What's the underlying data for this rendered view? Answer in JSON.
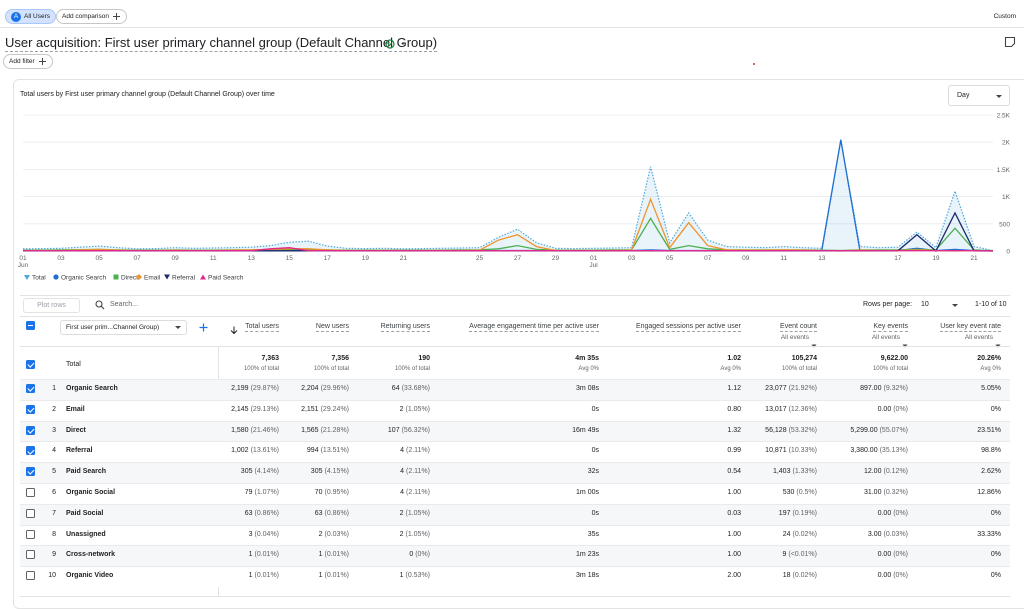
{
  "top_bar": {
    "segment_badge": "A",
    "segment": "All Users",
    "add_comparison": "Add comparison",
    "date_range": "Custom"
  },
  "header": {
    "title": "User acquisition: First user primary channel group (Default Channel Group)",
    "add_filter": "Add filter"
  },
  "chart": {
    "type": "line",
    "title": "Total users by First user primary channel group (Default Channel Group) over time",
    "granularity": "Day",
    "categories": [
      {
        "day": "01",
        "month": "Jun"
      },
      null,
      "03",
      null,
      "05",
      null,
      "07",
      null,
      "09",
      null,
      "11",
      null,
      "13",
      null,
      "15",
      null,
      "17",
      null,
      "19",
      null,
      "21",
      null,
      null,
      null,
      "25",
      null,
      "27",
      null,
      "29",
      null,
      {
        "day": "01",
        "month": "Jul"
      },
      null,
      "03",
      null,
      "05",
      null,
      "07",
      null,
      "09",
      null,
      "11",
      null,
      "13",
      null,
      null,
      null,
      "17",
      null,
      "19",
      null,
      "21",
      null
    ],
    "series": [
      {
        "name": "Total",
        "color": "#4fa8dc",
        "values": [
          40,
          45,
          50,
          70,
          90,
          60,
          40,
          45,
          60,
          50,
          55,
          60,
          70,
          100,
          160,
          180,
          90,
          50,
          45,
          50,
          40,
          45,
          50,
          55,
          60,
          250,
          400,
          150,
          50,
          45,
          50,
          55,
          60,
          1550,
          150,
          700,
          200,
          80,
          70,
          60,
          80,
          60,
          50,
          2050,
          80,
          60,
          70,
          350,
          60,
          1100,
          80,
          10
        ]
      },
      {
        "name": "Organic Search",
        "color": "#1f6fd1",
        "values": [
          10,
          10,
          10,
          10,
          10,
          10,
          10,
          10,
          10,
          10,
          10,
          10,
          10,
          10,
          10,
          10,
          10,
          10,
          10,
          10,
          10,
          10,
          10,
          10,
          10,
          10,
          10,
          10,
          10,
          10,
          10,
          10,
          10,
          20,
          10,
          10,
          10,
          10,
          10,
          10,
          10,
          10,
          10,
          2040,
          10,
          10,
          10,
          50,
          10,
          30,
          10,
          5
        ]
      },
      {
        "name": "Direct",
        "color": "#4caf50",
        "values": [
          15,
          15,
          20,
          25,
          30,
          20,
          15,
          15,
          20,
          15,
          15,
          20,
          20,
          25,
          30,
          30,
          20,
          15,
          15,
          15,
          15,
          15,
          15,
          20,
          20,
          40,
          100,
          30,
          15,
          15,
          15,
          20,
          20,
          600,
          30,
          100,
          40,
          20,
          20,
          20,
          20,
          20,
          15,
          10,
          20,
          20,
          20,
          30,
          20,
          420,
          20,
          3
        ]
      },
      {
        "name": "Email",
        "color": "#f0922b",
        "values": [
          10,
          10,
          10,
          20,
          30,
          15,
          10,
          10,
          15,
          10,
          10,
          15,
          20,
          30,
          40,
          40,
          20,
          10,
          10,
          10,
          10,
          10,
          10,
          10,
          15,
          200,
          300,
          80,
          10,
          10,
          10,
          10,
          15,
          950,
          60,
          520,
          100,
          20,
          15,
          15,
          20,
          15,
          10,
          0,
          15,
          10,
          10,
          20,
          10,
          0,
          10,
          0
        ]
      },
      {
        "name": "Referral",
        "color": "#1c2a6b",
        "values": [
          3,
          3,
          3,
          3,
          3,
          3,
          3,
          3,
          3,
          3,
          3,
          3,
          3,
          3,
          3,
          3,
          3,
          3,
          3,
          3,
          3,
          3,
          3,
          3,
          3,
          3,
          3,
          3,
          3,
          3,
          3,
          3,
          3,
          3,
          3,
          3,
          3,
          3,
          3,
          3,
          3,
          3,
          3,
          3,
          3,
          3,
          3,
          300,
          0,
          700,
          3,
          0
        ]
      },
      {
        "name": "Paid Search",
        "color": "#e0288d",
        "values": [
          5,
          5,
          5,
          5,
          5,
          5,
          5,
          5,
          5,
          5,
          5,
          5,
          5,
          40,
          60,
          5,
          5,
          5,
          5,
          5,
          5,
          5,
          5,
          5,
          5,
          5,
          5,
          5,
          5,
          5,
          5,
          5,
          5,
          5,
          5,
          5,
          5,
          5,
          5,
          5,
          5,
          5,
          5,
          5,
          5,
          5,
          5,
          5,
          5,
          5,
          5,
          0
        ]
      }
    ],
    "ylim": [
      0,
      2500
    ],
    "yticks": [
      0,
      500,
      {
        "value": 1000,
        "label": "1K"
      },
      {
        "value": 1500,
        "label": "1.5K"
      },
      {
        "value": 2000,
        "label": "2K"
      },
      {
        "value": 2500,
        "label": "2.5K"
      }
    ],
    "grid": true,
    "fill_first_series": true
  },
  "table": {
    "plot_rows": "Plot rows",
    "search_placeholder": "Search...",
    "rows_per_page_label": "Rows per page:",
    "rows_per_page": "10",
    "pagination": "1-10 of 10",
    "dimension": "First user prim...Channel Group)",
    "columns": [
      {
        "label": "Total users",
        "sorted": true
      },
      {
        "label": "New users"
      },
      {
        "label": "Returning users"
      },
      {
        "label": "Average engagement time per active user"
      },
      {
        "label": "Engaged sessions per active user"
      },
      {
        "label": "Event count",
        "filter": "All events"
      },
      {
        "label": "Key events",
        "filter": "All events"
      },
      {
        "label": "User key event rate",
        "filter": "All events"
      }
    ],
    "totals": {
      "label": "Total",
      "checked": true,
      "cells": [
        [
          "7,363",
          "100% of total"
        ],
        [
          "7,356",
          "100% of total"
        ],
        [
          "190",
          "100% of total"
        ],
        [
          "4m 35s",
          "Avg 0%"
        ],
        [
          "1.02",
          "Avg 0%"
        ],
        [
          "105,274",
          "100% of total"
        ],
        [
          "9,622.00",
          "100% of total"
        ],
        [
          "20.26%",
          "Avg 0%"
        ]
      ]
    },
    "rows": [
      {
        "index": "1",
        "name": "Organic Search",
        "checked": true,
        "cells": [
          [
            "2,199",
            "(29.87%)"
          ],
          [
            "2,204",
            "(29.96%)"
          ],
          [
            "64",
            "(33.68%)"
          ],
          [
            "3m 08s"
          ],
          [
            "1.12"
          ],
          [
            "23,077",
            "(21.92%)"
          ],
          [
            "897.00",
            "(9.32%)"
          ],
          [
            "5.05%"
          ]
        ]
      },
      {
        "index": "2",
        "name": "Email",
        "checked": true,
        "cells": [
          [
            "2,145",
            "(29.13%)"
          ],
          [
            "2,151",
            "(29.24%)"
          ],
          [
            "2",
            "(1.05%)"
          ],
          [
            "0s"
          ],
          [
            "0.80"
          ],
          [
            "13,017",
            "(12.36%)"
          ],
          [
            "0.00",
            "(0%)"
          ],
          [
            "0%"
          ]
        ]
      },
      {
        "index": "3",
        "name": "Direct",
        "checked": true,
        "cells": [
          [
            "1,580",
            "(21.46%)"
          ],
          [
            "1,565",
            "(21.28%)"
          ],
          [
            "107",
            "(56.32%)"
          ],
          [
            "16m 49s"
          ],
          [
            "1.32"
          ],
          [
            "56,128",
            "(53.32%)"
          ],
          [
            "5,299.00",
            "(55.07%)"
          ],
          [
            "23.51%"
          ]
        ]
      },
      {
        "index": "4",
        "name": "Referral",
        "checked": true,
        "cells": [
          [
            "1,002",
            "(13.61%)"
          ],
          [
            "994",
            "(13.51%)"
          ],
          [
            "4",
            "(2.11%)"
          ],
          [
            "0s"
          ],
          [
            "0.99"
          ],
          [
            "10,871",
            "(10.33%)"
          ],
          [
            "3,380.00",
            "(35.13%)"
          ],
          [
            "98.8%"
          ]
        ]
      },
      {
        "index": "5",
        "name": "Paid Search",
        "checked": true,
        "cells": [
          [
            "305",
            "(4.14%)"
          ],
          [
            "305",
            "(4.15%)"
          ],
          [
            "4",
            "(2.11%)"
          ],
          [
            "32s"
          ],
          [
            "0.54"
          ],
          [
            "1,403",
            "(1.33%)"
          ],
          [
            "12.00",
            "(0.12%)"
          ],
          [
            "2.62%"
          ]
        ]
      },
      {
        "index": "6",
        "name": "Organic Social",
        "checked": false,
        "cells": [
          [
            "79",
            "(1.07%)"
          ],
          [
            "70",
            "(0.95%)"
          ],
          [
            "4",
            "(2.11%)"
          ],
          [
            "1m 00s"
          ],
          [
            "1.00"
          ],
          [
            "530",
            "(0.5%)"
          ],
          [
            "31.00",
            "(0.32%)"
          ],
          [
            "12.86%"
          ]
        ]
      },
      {
        "index": "7",
        "name": "Paid Social",
        "checked": false,
        "cells": [
          [
            "63",
            "(0.86%)"
          ],
          [
            "63",
            "(0.86%)"
          ],
          [
            "2",
            "(1.05%)"
          ],
          [
            "0s"
          ],
          [
            "0.03"
          ],
          [
            "197",
            "(0.19%)"
          ],
          [
            "0.00",
            "(0%)"
          ],
          [
            "0%"
          ]
        ]
      },
      {
        "index": "8",
        "name": "Unassigned",
        "checked": false,
        "cells": [
          [
            "3",
            "(0.04%)"
          ],
          [
            "2",
            "(0.03%)"
          ],
          [
            "2",
            "(1.05%)"
          ],
          [
            "35s"
          ],
          [
            "1.00"
          ],
          [
            "24",
            "(0.02%)"
          ],
          [
            "3.00",
            "(0.03%)"
          ],
          [
            "33.33%"
          ]
        ]
      },
      {
        "index": "9",
        "name": "Cross-network",
        "checked": false,
        "cells": [
          [
            "1",
            "(0.01%)"
          ],
          [
            "1",
            "(0.01%)"
          ],
          [
            "0",
            "(0%)"
          ],
          [
            "1m 23s"
          ],
          [
            "1.00"
          ],
          [
            "9",
            "(<0.01%)"
          ],
          [
            "0.00",
            "(0%)"
          ],
          [
            "0%"
          ]
        ]
      },
      {
        "index": "10",
        "name": "Organic Video",
        "checked": false,
        "cells": [
          [
            "1",
            "(0.01%)"
          ],
          [
            "1",
            "(0.01%)"
          ],
          [
            "1",
            "(0.53%)"
          ],
          [
            "3m 18s"
          ],
          [
            "2.00"
          ],
          [
            "18",
            "(0.02%)"
          ],
          [
            "0.00",
            "(0%)"
          ],
          [
            "0%"
          ]
        ]
      }
    ]
  }
}
